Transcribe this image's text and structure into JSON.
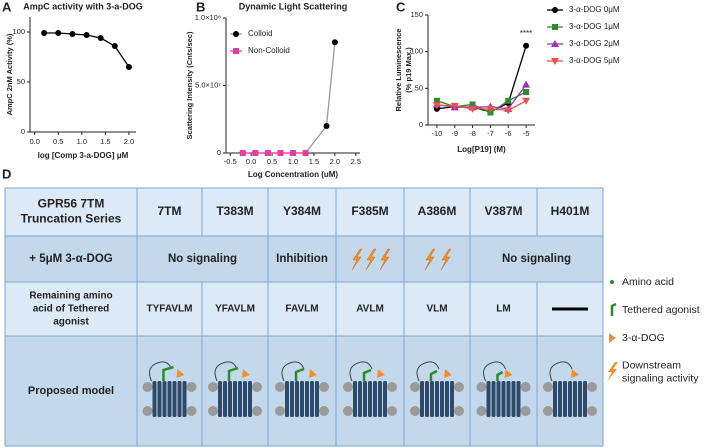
{
  "chart_data": [
    {
      "type": "line",
      "panel_label": "A",
      "title": "AmpC activity with 3-a-DOG",
      "xlabel": "log [Comp 3-a-DOG] μM",
      "ylabel": "AmpC 2nM Activity (%)",
      "x": [
        0.2,
        0.5,
        0.8,
        1.1,
        1.4,
        1.7,
        2.0
      ],
      "values": [
        99,
        99,
        98,
        97,
        94,
        86,
        65
      ],
      "color": "#000000",
      "xlim": [
        -0.1,
        2.15
      ],
      "ylim": [
        0,
        115
      ],
      "xticks": [
        {
          "value": 0,
          "label": "0.0"
        },
        0.5,
        {
          "value": 1,
          "label": "1.0"
        },
        1.5,
        {
          "value": 2,
          "label": "2.0"
        }
      ],
      "yticks": [
        0,
        50,
        100
      ]
    },
    {
      "type": "line",
      "panel_label": "B",
      "title": "Dynamic Light Scattering",
      "xlabel": "Log Concentration (uM)",
      "ylabel": "Scattering Intensity (Cnts/sec)",
      "series": [
        {
          "name": "Colloid",
          "color": "#000000",
          "line_color": "#999999",
          "marker": "circle",
          "x": [
            -0.2,
            0.1,
            0.4,
            0.7,
            1.0,
            1.3,
            1.8,
            2.0
          ],
          "values": [
            0,
            0,
            0,
            0,
            0,
            0,
            20000000,
            82000000
          ]
        },
        {
          "name": "Non-Colloid",
          "color": "#e040a0",
          "line_color": "#e040a0",
          "marker": "square",
          "x": [
            -0.2,
            0.1,
            0.4,
            0.7,
            1.0,
            1.3
          ],
          "values": [
            0,
            0,
            0,
            0,
            0,
            0
          ]
        }
      ],
      "xlim": [
        -0.6,
        2.6
      ],
      "ylim": [
        0,
        100000000
      ],
      "xticks": [
        -0.5,
        {
          "value": 0,
          "label": "0.0"
        },
        0.5,
        {
          "value": 1,
          "label": "1.0"
        },
        1.5,
        {
          "value": 2,
          "label": "2.0"
        },
        2.5
      ],
      "yticks": [
        0,
        {
          "value": 50000000,
          "label": "5.0×10⁷"
        },
        {
          "value": 100000000,
          "label": "1.0×10⁸"
        }
      ],
      "legend": "upper left"
    },
    {
      "type": "line",
      "panel_label": "C",
      "xlabel": "Log[P19] (M)",
      "ylabel": [
        "Relative Luminescence",
        "(% p19 Max.)"
      ],
      "x": [
        -10,
        -9,
        -8,
        -7,
        -6,
        -5
      ],
      "series": [
        {
          "name": "3-α-DOG 0μM",
          "color": "#000000",
          "line_color": "#000000",
          "marker": "circle",
          "values": [
            22,
            25,
            24,
            18,
            30,
            108
          ]
        },
        {
          "name": "3-α-DOG 1μM",
          "color": "#2e8b2e",
          "line_color": "#2e8b2e",
          "marker": "square",
          "values": [
            33,
            25,
            28,
            17,
            33,
            45
          ]
        },
        {
          "name": "3-α-DOG 2μM",
          "color": "#9b30c0",
          "line_color": "#9b30c0",
          "marker": "triangle",
          "values": [
            28,
            24,
            24,
            25,
            22,
            55
          ]
        },
        {
          "name": "3-α-DOG 5μM",
          "color": "#e8534a",
          "line_color": "#e8534a",
          "marker": "triangle-down",
          "values": [
            27,
            26,
            22,
            22,
            20,
            33
          ]
        }
      ],
      "annotation": "****",
      "xlim": [
        -10.5,
        -4.5
      ],
      "ylim": [
        0,
        150
      ],
      "xticks": [
        -10,
        -9,
        -8,
        -7,
        -6,
        -5
      ],
      "yticks": [
        0,
        50,
        100,
        150
      ],
      "legend": "right"
    }
  ],
  "table": {
    "panel_label": "D",
    "corner": [
      "GPR56 7TM",
      "Truncation Series"
    ],
    "columns": [
      "7TM",
      "T383M",
      "Y384M",
      "F385M",
      "A386M",
      "V387M",
      "H401M"
    ],
    "treatment": {
      "label": "+ 5μM 3-α-DOG",
      "effects": [
        "No signaling",
        "Inhibition",
        "No signaling"
      ]
    },
    "remaining": {
      "label": [
        "Remaining amino",
        "acid of Tethered",
        "agonist"
      ],
      "values": [
        "TYFAVLM",
        "YFAVLM",
        "FAVLM",
        "AVLM",
        "VLM",
        "LM"
      ]
    },
    "model_label": "Proposed model",
    "legend": [
      [
        "Amino acid"
      ],
      [
        "Tethered agonist"
      ],
      [
        "3-α-DOG"
      ],
      [
        "Downstream",
        "signaling activity"
      ]
    ]
  }
}
